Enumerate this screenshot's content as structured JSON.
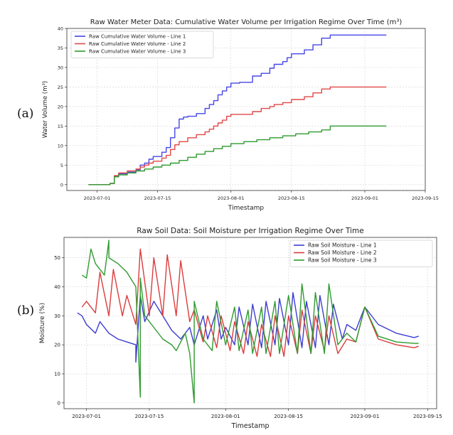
{
  "panel_labels": [
    "(a)",
    "(b)"
  ],
  "colors": {
    "line1": "#4646e6",
    "line2": "#e04848",
    "line3": "#2f9a2f",
    "grid": "#d9d9d9",
    "axis": "#333333"
  },
  "chart_data": [
    {
      "type": "line",
      "title": "Raw Water Meter Data: Cumulative Water Volume per Irrigation Regime Over Time (m³)",
      "xlabel": "Timestamp",
      "ylabel": "Water Volume (m³)",
      "xlim": [
        "2023-06-24",
        "2023-09-15"
      ],
      "ylim": [
        -1.5,
        40
      ],
      "x_ticks": [
        "2023-07-01",
        "2023-07-15",
        "2023-08-01",
        "2023-08-15",
        "2023-09-01",
        "2023-09-15"
      ],
      "y_ticks": [
        0,
        5,
        10,
        15,
        20,
        25,
        30,
        35,
        40
      ],
      "grid": true,
      "legend_position": "top-left",
      "step": true,
      "series": [
        {
          "name": "Raw Cumulative Water Volume - Line 1",
          "color": "#4646e6",
          "x": [
            "2023-06-29",
            "2023-07-04",
            "2023-07-05",
            "2023-07-06",
            "2023-07-08",
            "2023-07-10",
            "2023-07-11",
            "2023-07-12",
            "2023-07-13",
            "2023-07-14",
            "2023-07-16",
            "2023-07-17",
            "2023-07-18",
            "2023-07-19",
            "2023-07-20",
            "2023-07-21",
            "2023-07-22",
            "2023-07-24",
            "2023-07-26",
            "2023-07-27",
            "2023-07-28",
            "2023-07-29",
            "2023-07-30",
            "2023-07-31",
            "2023-08-01",
            "2023-08-03",
            "2023-08-06",
            "2023-08-08",
            "2023-08-10",
            "2023-08-11",
            "2023-08-13",
            "2023-08-14",
            "2023-08-15",
            "2023-08-18",
            "2023-08-20",
            "2023-08-22",
            "2023-08-24",
            "2023-09-06"
          ],
          "y": [
            0,
            0.3,
            2.2,
            2.8,
            3.2,
            3.8,
            5,
            5.5,
            6.5,
            7.2,
            8.3,
            9.5,
            12,
            14.5,
            16.8,
            17.3,
            17.5,
            18.2,
            19.5,
            20.5,
            21.5,
            23,
            24,
            25,
            26,
            26.2,
            27.8,
            28.5,
            29.8,
            30.8,
            31.5,
            32.5,
            33.5,
            34.5,
            35.8,
            37.5,
            38.3,
            38.3
          ]
        },
        {
          "name": "Raw Cumulative Water Volume - Line 2",
          "color": "#e04848",
          "x": [
            "2023-06-29",
            "2023-07-04",
            "2023-07-05",
            "2023-07-06",
            "2023-07-08",
            "2023-07-10",
            "2023-07-11",
            "2023-07-12",
            "2023-07-13",
            "2023-07-14",
            "2023-07-16",
            "2023-07-17",
            "2023-07-18",
            "2023-07-19",
            "2023-07-20",
            "2023-07-22",
            "2023-07-24",
            "2023-07-26",
            "2023-07-27",
            "2023-07-28",
            "2023-07-29",
            "2023-07-30",
            "2023-07-31",
            "2023-08-01",
            "2023-08-03",
            "2023-08-06",
            "2023-08-08",
            "2023-08-10",
            "2023-08-11",
            "2023-08-13",
            "2023-08-15",
            "2023-08-18",
            "2023-08-20",
            "2023-08-22",
            "2023-08-24",
            "2023-09-06"
          ],
          "y": [
            0,
            0.3,
            2.3,
            3,
            3.5,
            4,
            4.5,
            5,
            5.5,
            6,
            6.8,
            7.5,
            9,
            10.2,
            11,
            12,
            12.8,
            13.5,
            14.2,
            15,
            15.8,
            16.5,
            17.5,
            18,
            18,
            18.7,
            19.5,
            20,
            20.5,
            21,
            21.8,
            22.5,
            23.5,
            24.5,
            25,
            25
          ]
        },
        {
          "name": "Raw Cumulative Water Volume - Line 3",
          "color": "#2f9a2f",
          "x": [
            "2023-06-29",
            "2023-07-04",
            "2023-07-05",
            "2023-07-06",
            "2023-07-08",
            "2023-07-10",
            "2023-07-12",
            "2023-07-14",
            "2023-07-16",
            "2023-07-18",
            "2023-07-20",
            "2023-07-22",
            "2023-07-24",
            "2023-07-26",
            "2023-07-28",
            "2023-07-30",
            "2023-08-01",
            "2023-08-04",
            "2023-08-07",
            "2023-08-10",
            "2023-08-13",
            "2023-08-16",
            "2023-08-19",
            "2023-08-22",
            "2023-08-24",
            "2023-09-06"
          ],
          "y": [
            0,
            0.3,
            2,
            2.5,
            3,
            3.5,
            4,
            4.5,
            5,
            5.5,
            6.2,
            7,
            7.8,
            8.5,
            9.2,
            9.8,
            10.5,
            11,
            11.5,
            12,
            12.5,
            13,
            13.5,
            14,
            15,
            15
          ]
        }
      ]
    },
    {
      "type": "line",
      "title": "Raw Soil Data: Soil Moisture per Irrigation Regime Over Time",
      "xlabel": "Timestamp",
      "ylabel": "Moisture (%)",
      "xlim": [
        "2023-06-26",
        "2023-09-17"
      ],
      "ylim": [
        -2,
        57
      ],
      "x_ticks": [
        "2023-07-01",
        "2023-07-15",
        "2023-08-01",
        "2023-08-15",
        "2023-09-01",
        "2023-09-15"
      ],
      "y_ticks": [
        0,
        10,
        20,
        30,
        40,
        50
      ],
      "grid": true,
      "legend_position": "top-right",
      "series": [
        {
          "name": "Raw Soil Moisture - Line 1",
          "color": "#3c3cd2",
          "x": [
            "2023-06-29",
            "2023-06-30",
            "2023-07-01",
            "2023-07-03",
            "2023-07-04",
            "2023-07-06",
            "2023-07-08",
            "2023-07-10",
            "2023-07-12",
            "2023-07-12",
            "2023-07-13",
            "2023-07-14",
            "2023-07-16",
            "2023-07-18",
            "2023-07-20",
            "2023-07-22",
            "2023-07-24",
            "2023-07-25",
            "2023-07-27",
            "2023-07-28",
            "2023-07-30",
            "2023-07-31",
            "2023-08-01",
            "2023-08-03",
            "2023-08-04",
            "2023-08-06",
            "2023-08-07",
            "2023-08-09",
            "2023-08-10",
            "2023-08-12",
            "2023-08-13",
            "2023-08-15",
            "2023-08-16",
            "2023-08-18",
            "2023-08-19",
            "2023-08-21",
            "2023-08-22",
            "2023-08-24",
            "2023-08-25",
            "2023-08-27",
            "2023-08-28",
            "2023-08-30",
            "2023-09-01",
            "2023-09-04",
            "2023-09-08",
            "2023-09-12",
            "2023-09-13"
          ],
          "y": [
            31,
            30,
            27,
            24,
            28,
            24,
            22,
            21,
            20,
            14,
            37,
            28,
            35,
            30,
            25,
            22,
            26,
            20,
            30,
            22,
            32,
            22,
            26,
            20,
            33,
            20,
            34,
            19,
            35,
            20,
            36,
            20,
            38,
            19,
            35,
            19,
            37,
            20,
            34,
            22,
            27,
            25,
            33,
            27,
            24,
            22.5,
            23
          ]
        },
        {
          "name": "Raw Soil Moisture - Line 2",
          "color": "#dc3c3c",
          "x": [
            "2023-06-30",
            "2023-07-01",
            "2023-07-03",
            "2023-07-04",
            "2023-07-06",
            "2023-07-07",
            "2023-07-09",
            "2023-07-10",
            "2023-07-12",
            "2023-07-13",
            "2023-07-15",
            "2023-07-16",
            "2023-07-18",
            "2023-07-19",
            "2023-07-21",
            "2023-07-22",
            "2023-07-24",
            "2023-07-25",
            "2023-07-27",
            "2023-07-28",
            "2023-07-30",
            "2023-07-31",
            "2023-08-02",
            "2023-08-03",
            "2023-08-05",
            "2023-08-06",
            "2023-08-08",
            "2023-08-09",
            "2023-08-11",
            "2023-08-12",
            "2023-08-14",
            "2023-08-15",
            "2023-08-17",
            "2023-08-18",
            "2023-08-20",
            "2023-08-21",
            "2023-08-23",
            "2023-08-24",
            "2023-08-26",
            "2023-08-28",
            "2023-08-30",
            "2023-09-01",
            "2023-09-04",
            "2023-09-08",
            "2023-09-12",
            "2023-09-13"
          ],
          "y": [
            33,
            35,
            31,
            45,
            30,
            46,
            30,
            37,
            27,
            53,
            30,
            50,
            30,
            51,
            30,
            49,
            28,
            32,
            21,
            30,
            19,
            30,
            18,
            28,
            17,
            28,
            16,
            27,
            16,
            30,
            16,
            30,
            17,
            32,
            17,
            30,
            18,
            30,
            17,
            22,
            21,
            33,
            22,
            20,
            19,
            19.5
          ]
        },
        {
          "name": "Raw Soil Moisture - Line 3",
          "color": "#2f9a2f",
          "x": [
            "2023-06-30",
            "2023-07-01",
            "2023-07-02",
            "2023-07-03",
            "2023-07-05",
            "2023-07-06",
            "2023-07-06",
            "2023-07-08",
            "2023-07-10",
            "2023-07-12",
            "2023-07-13",
            "2023-07-13",
            "2023-07-14",
            "2023-07-15",
            "2023-07-18",
            "2023-07-20",
            "2023-07-21",
            "2023-07-23",
            "2023-07-24",
            "2023-07-25",
            "2023-07-25",
            "2023-07-27",
            "2023-07-29",
            "2023-07-30",
            "2023-08-01",
            "2023-08-03",
            "2023-08-04",
            "2023-08-06",
            "2023-08-07",
            "2023-08-09",
            "2023-08-10",
            "2023-08-12",
            "2023-08-13",
            "2023-08-15",
            "2023-08-17",
            "2023-08-18",
            "2023-08-20",
            "2023-08-21",
            "2023-08-23",
            "2023-08-24",
            "2023-08-26",
            "2023-08-28",
            "2023-08-30",
            "2023-09-01",
            "2023-09-04",
            "2023-09-08",
            "2023-09-12",
            "2023-09-13"
          ],
          "y": [
            44,
            43,
            53,
            48,
            44,
            56,
            50,
            48,
            45,
            40,
            2,
            43,
            30,
            28,
            22,
            20,
            18,
            24,
            17,
            0,
            35,
            22,
            18,
            35,
            20,
            33,
            18,
            32,
            17,
            33,
            17,
            35,
            17,
            37,
            17,
            41,
            17,
            38,
            17,
            41,
            20,
            24,
            21,
            33,
            23,
            21,
            20.5,
            20.5
          ]
        }
      ]
    }
  ]
}
